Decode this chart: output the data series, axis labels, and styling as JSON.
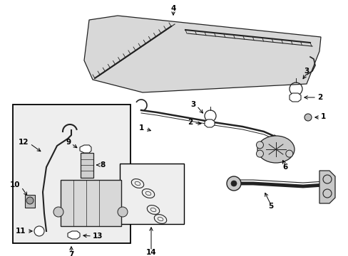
{
  "bg_color": "#ffffff",
  "fig_width": 4.89,
  "fig_height": 3.6,
  "dpi": 100,
  "line_color": "#222222",
  "fill_light": "#d0d0d0",
  "fill_dotted": "#e8e8e8",
  "label_fs": 7.5
}
